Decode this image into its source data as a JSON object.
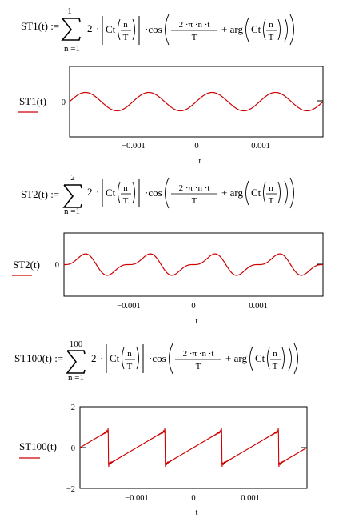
{
  "equations": [
    {
      "lhs": "ST1(t) :=",
      "sum_upper": "1",
      "sum_lower": "n =1",
      "factor": "2",
      "dot": "·",
      "ct": "Ct",
      "n": "n",
      "T": "T",
      "cos": "·cos",
      "numerator": "2 ·π ·n ·t",
      "plus_arg": "+ arg"
    },
    {
      "lhs": "ST2(t) :=",
      "sum_upper": "2",
      "sum_lower": "n =1",
      "factor": "2",
      "dot": "·",
      "ct": "Ct",
      "n": "n",
      "T": "T",
      "cos": "·cos",
      "numerator": "2 ·π ·n ·t",
      "plus_arg": "+ arg"
    },
    {
      "lhs": "ST100(t) :=",
      "sum_upper": "100",
      "sum_lower": "n =1",
      "factor": "2",
      "dot": "·",
      "ct": "Ct",
      "n": "n",
      "T": "T",
      "cos": "·cos",
      "numerator": "2 ·π ·n ·t",
      "plus_arg": "+ arg"
    }
  ],
  "chart_data": [
    {
      "type": "line",
      "ylabel": "ST1(t)",
      "xlabel": "t",
      "x_ticks": [
        "−0.001",
        "0",
        "0.001"
      ],
      "y_ticks": [
        "0"
      ],
      "xlim": [
        -0.002,
        0.002
      ],
      "ylim": [
        -2,
        2
      ],
      "series": [
        {
          "color": "#cc0000",
          "harmonics": 1
        }
      ]
    },
    {
      "type": "line",
      "ylabel": "ST2(t)",
      "xlabel": "t",
      "x_ticks": [
        "−0.001",
        "0",
        "0.001"
      ],
      "y_ticks": [
        "0"
      ],
      "xlim": [
        -0.002,
        0.002
      ],
      "ylim": [
        -2,
        2
      ],
      "series": [
        {
          "color": "#cc0000",
          "harmonics": 2
        }
      ]
    },
    {
      "type": "line",
      "ylabel": "ST100(t)",
      "xlabel": "t",
      "x_ticks": [
        "−0.001",
        "0",
        "0.001"
      ],
      "y_ticks": [
        "2",
        "0",
        "−2"
      ],
      "xlim": [
        -0.002,
        0.002
      ],
      "ylim": [
        -2,
        2
      ],
      "series": [
        {
          "color": "#cc0000",
          "harmonics": 100
        }
      ]
    }
  ]
}
